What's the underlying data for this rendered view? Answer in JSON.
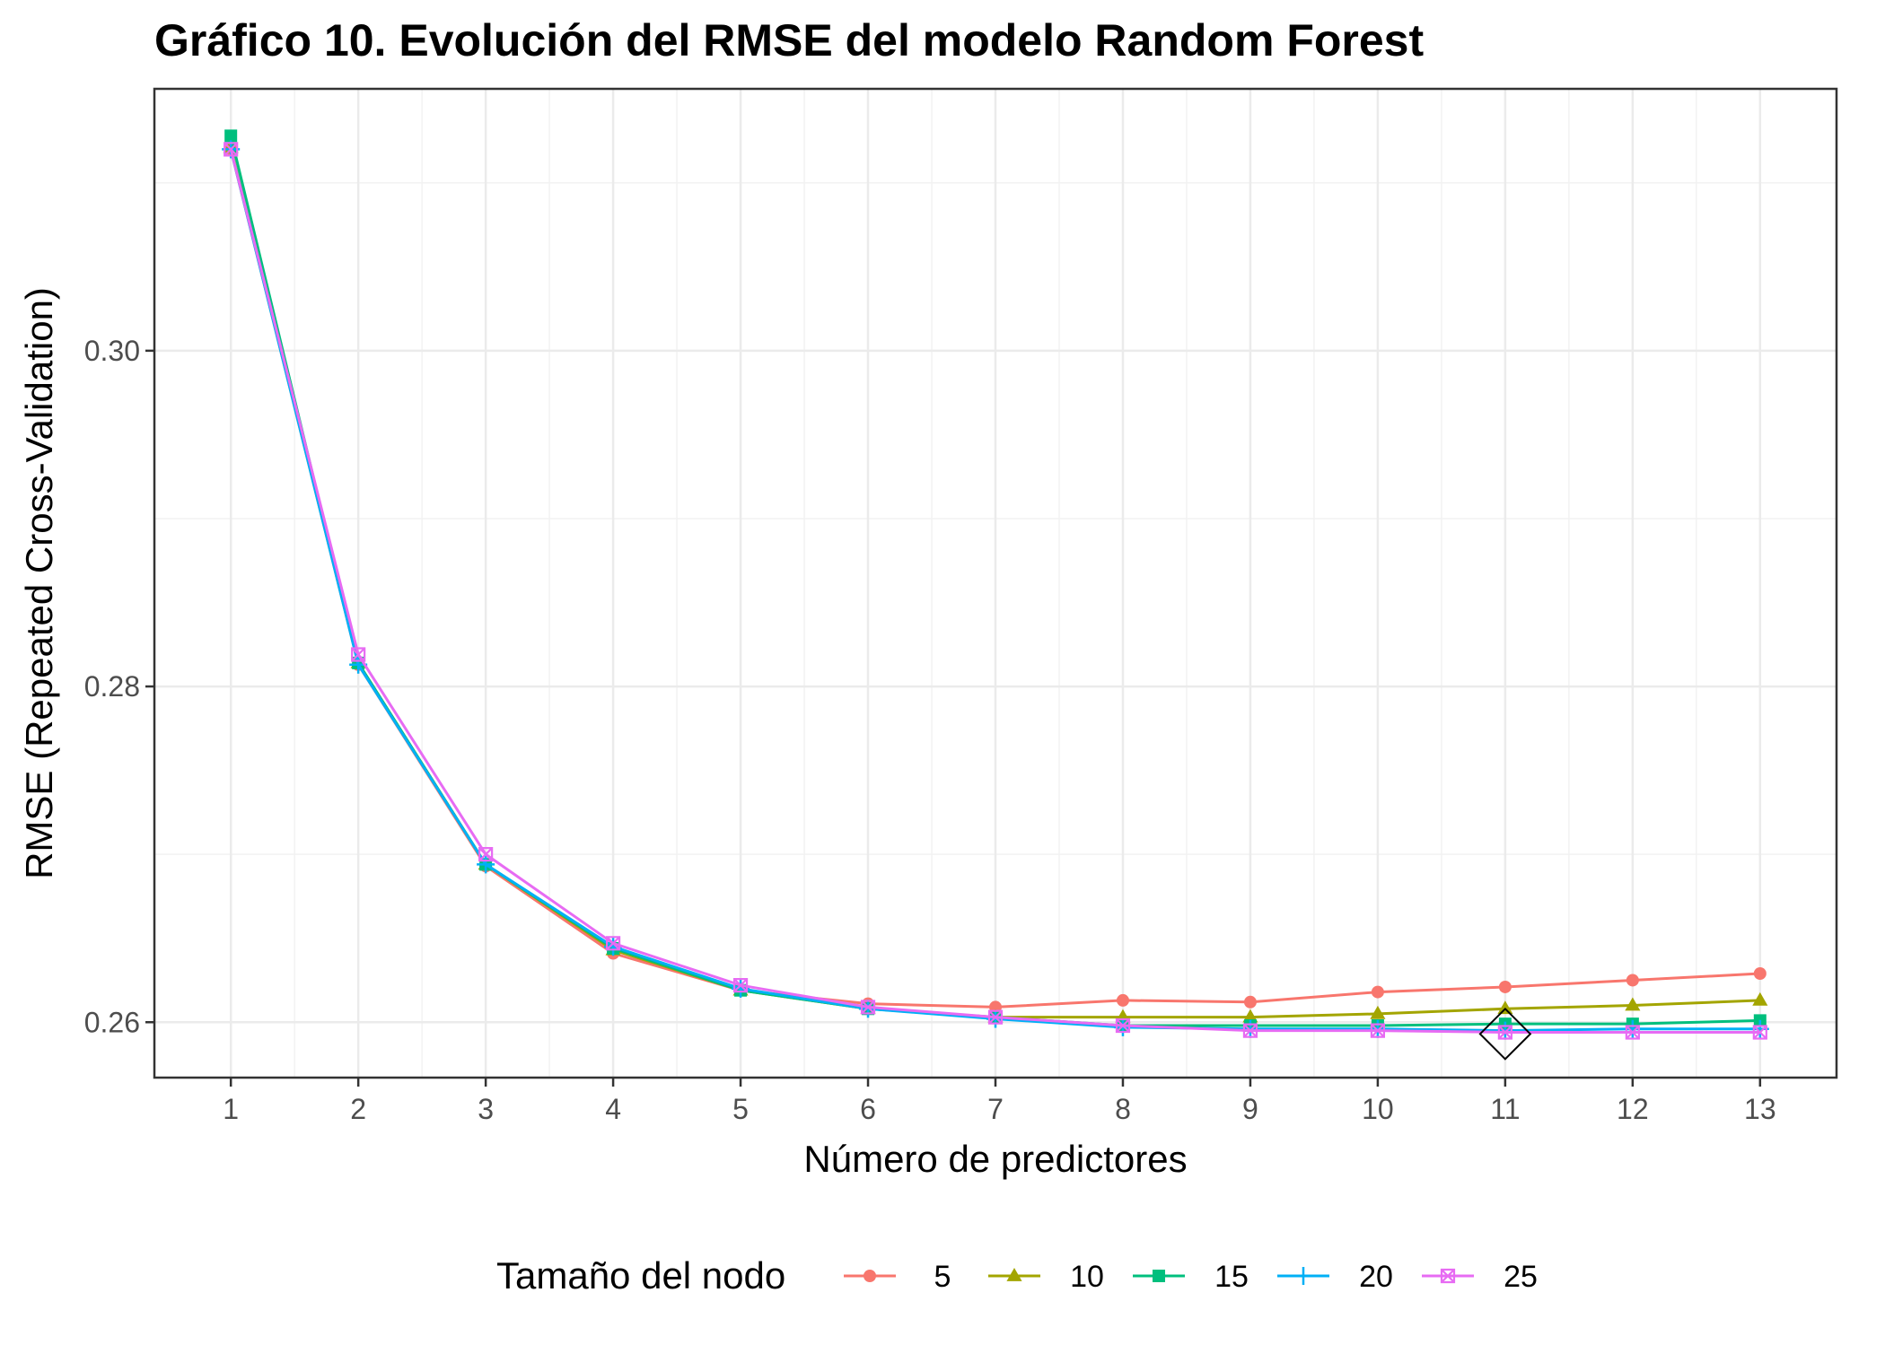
{
  "chart_data": {
    "type": "line",
    "title": "Gráfico 10. Evolución del RMSE del modelo Random Forest",
    "xlabel": "Número de predictores",
    "ylabel": "RMSE (Repeated Cross-Validation)",
    "x": [
      1,
      2,
      3,
      4,
      5,
      6,
      7,
      8,
      9,
      10,
      11,
      12,
      13
    ],
    "x_ticks": [
      "1",
      "2",
      "3",
      "4",
      "5",
      "6",
      "7",
      "8",
      "9",
      "10",
      "11",
      "12",
      "13"
    ],
    "xlim": [
      0.4,
      13.6
    ],
    "y_ticks": [
      "0.26",
      "0.28",
      "0.30"
    ],
    "y_tick_values": [
      0.26,
      0.28,
      0.3
    ],
    "ylim": [
      0.2567,
      0.3156
    ],
    "grid": true,
    "legend": {
      "title": "Tamaño del nodo",
      "position": "bottom"
    },
    "series": [
      {
        "name": "5",
        "color": "#F8766D",
        "marker": "circle",
        "values": [
          0.312,
          0.2813,
          0.2693,
          0.2641,
          0.2619,
          0.2611,
          0.2609,
          0.2613,
          0.2612,
          0.2618,
          0.2621,
          0.2625,
          0.2629
        ]
      },
      {
        "name": "10",
        "color": "#A3A500",
        "marker": "triangle",
        "values": [
          0.3121,
          0.2814,
          0.2694,
          0.2643,
          0.2619,
          0.2608,
          0.2603,
          0.2603,
          0.2603,
          0.2605,
          0.2608,
          0.261,
          0.2613
        ]
      },
      {
        "name": "15",
        "color": "#00BF7D",
        "marker": "square",
        "values": [
          0.3128,
          0.2814,
          0.2694,
          0.2644,
          0.2619,
          0.2608,
          0.2603,
          0.2598,
          0.2598,
          0.2598,
          0.2599,
          0.2599,
          0.2601
        ]
      },
      {
        "name": "20",
        "color": "#00B0F6",
        "marker": "plus",
        "values": [
          0.312,
          0.2813,
          0.2694,
          0.2645,
          0.262,
          0.2608,
          0.2602,
          0.2597,
          0.2596,
          0.2596,
          0.2595,
          0.2596,
          0.2596
        ]
      },
      {
        "name": "25",
        "color": "#E76BF3",
        "marker": "boxx",
        "values": [
          0.312,
          0.2819,
          0.27,
          0.2647,
          0.2622,
          0.2609,
          0.2603,
          0.2598,
          0.2595,
          0.2595,
          0.2594,
          0.2594,
          0.2594
        ]
      }
    ],
    "highlight": {
      "x": 11,
      "y": 0.2593,
      "marker": "diamond"
    }
  }
}
